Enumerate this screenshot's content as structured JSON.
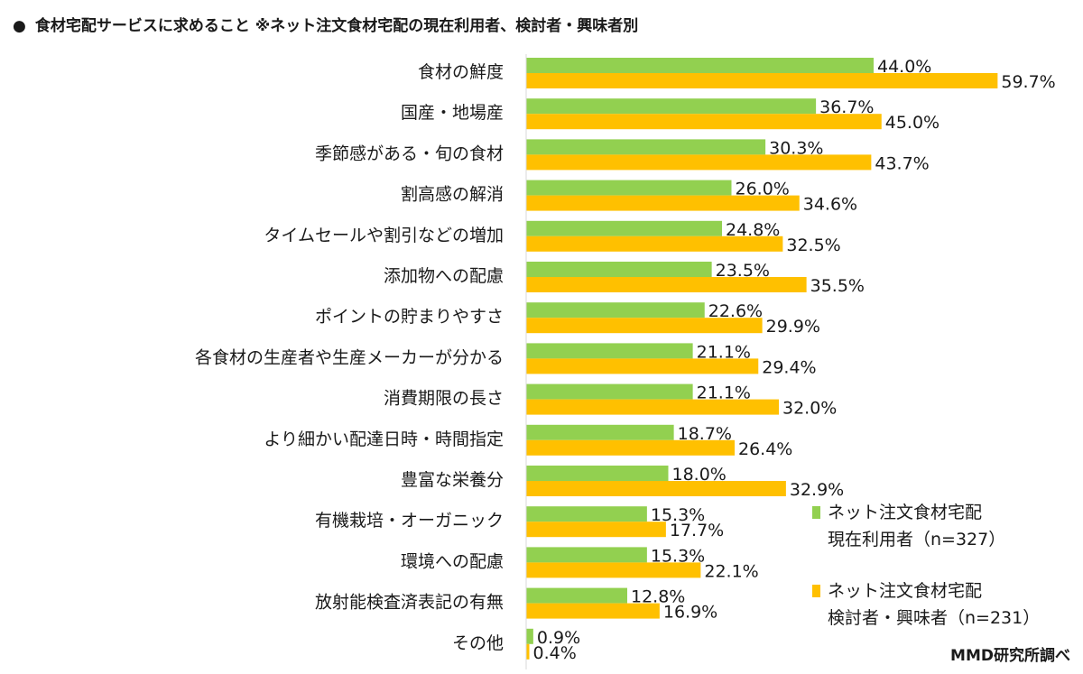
{
  "header": {
    "bullet": "●",
    "title": "食材宅配サービスに求めること ※ネット注文食材宅配の現在利用者、検討者・興味者別"
  },
  "legend": {
    "series1_line1": "ネット注文食材宅配",
    "series1_line2": "現在利用者（n=327）",
    "series2_line1": "ネット注文食材宅配",
    "series2_line2": "検討者・興味者（n=231）"
  },
  "source": "MMD研究所調べ",
  "colors": {
    "series1": "#92d050",
    "series2": "#ffc000"
  },
  "chart_data": {
    "type": "bar",
    "orientation": "horizontal",
    "categories": [
      "食材の鮮度",
      "国産・地場産",
      "季節感がある・旬の食材",
      "割高感の解消",
      "タイムセールや割引などの増加",
      "添加物への配慮",
      "ポイントの貯まりやすさ",
      "各食材の生産者や生産メーカーが分かる",
      "消費期限の長さ",
      "より細かい配達日時・時間指定",
      "豊富な栄養分",
      "有機栽培・オーガニック",
      "環境への配慮",
      "放射能検査済表記の有無",
      "その他"
    ],
    "series": [
      {
        "name": "ネット注文食材宅配 現在利用者（n=327）",
        "values": [
          44.0,
          36.7,
          30.3,
          26.0,
          24.8,
          23.5,
          22.6,
          21.1,
          21.1,
          18.7,
          18.0,
          15.3,
          15.3,
          12.8,
          0.9
        ]
      },
      {
        "name": "ネット注文食材宅配 検討者・興味者（n=231）",
        "values": [
          59.7,
          45.0,
          43.7,
          34.6,
          32.5,
          35.5,
          29.9,
          29.4,
          32.0,
          26.4,
          32.9,
          17.7,
          22.1,
          16.9,
          0.4
        ]
      }
    ],
    "value_suffix": "%",
    "xlim": [
      0,
      100
    ],
    "grid": false,
    "legend_position": "bottom-right"
  }
}
